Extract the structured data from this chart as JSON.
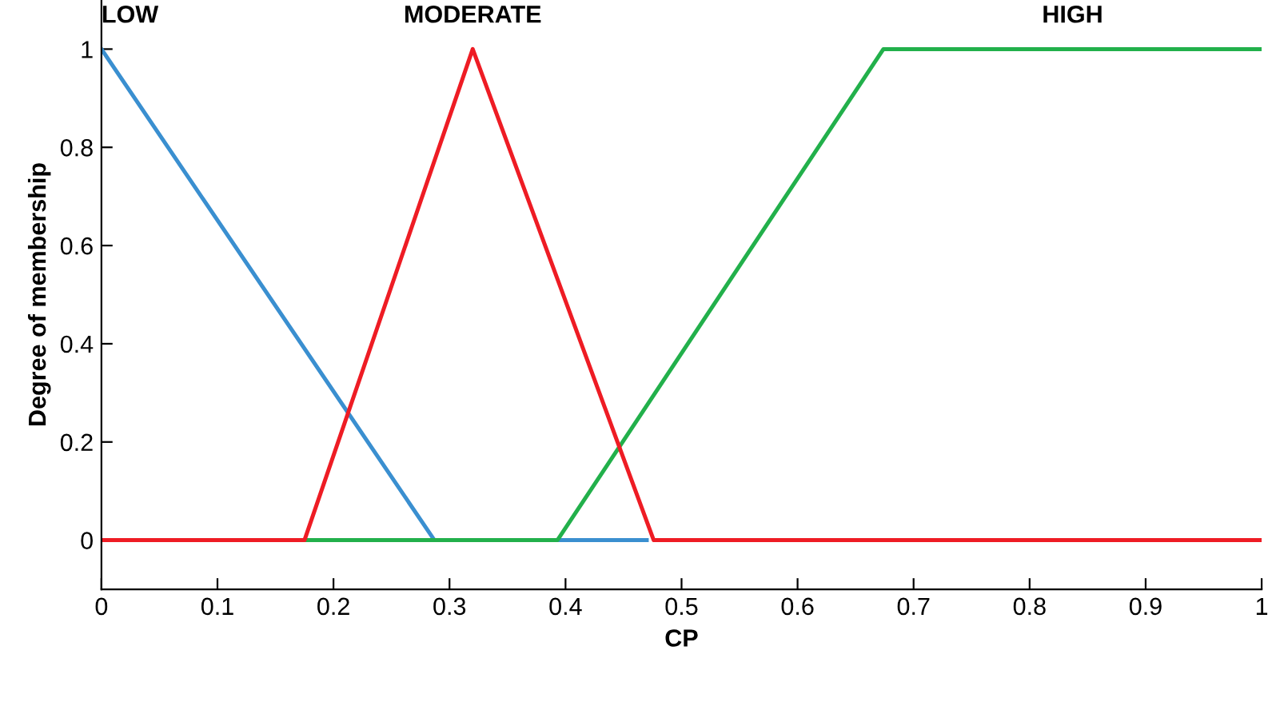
{
  "chart_data": {
    "type": "line",
    "xlabel": "CP",
    "ylabel": "Degree of membership",
    "xlim": [
      0,
      1
    ],
    "ylim": [
      -0.1,
      1.1
    ],
    "xticks": [
      0,
      0.1,
      0.2,
      0.3,
      0.4,
      0.5,
      0.6,
      0.7,
      0.8,
      0.9,
      1
    ],
    "yticks": [
      0,
      0.2,
      0.4,
      0.6,
      0.8,
      1
    ],
    "grid": false,
    "legend": false,
    "marker": "none",
    "line_style": "solid",
    "series": [
      {
        "name": "LOW",
        "color": "#3a8fd0",
        "x": [
          0,
          0.287,
          0.47
        ],
        "values": [
          1,
          0,
          0
        ]
      },
      {
        "name": "HIGH",
        "color": "#22b04b",
        "x": [
          0,
          0.393,
          0.674,
          1
        ],
        "values": [
          0,
          0,
          1,
          1
        ]
      },
      {
        "name": "MODERATE",
        "color": "#ee1c24",
        "x": [
          0,
          0.175,
          0.32,
          0.476,
          1
        ],
        "values": [
          0,
          0,
          1,
          0,
          0
        ]
      }
    ]
  }
}
